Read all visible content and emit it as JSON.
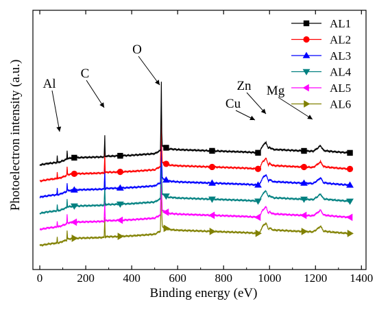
{
  "chart_data": {
    "type": "line",
    "xlabel": "Binding energy (eV)",
    "ylabel": "Photoelectron intensity (a.u.)",
    "xlim": [
      -30,
      1420
    ],
    "x_ticks": [
      0,
      200,
      400,
      600,
      800,
      1000,
      1200,
      1400
    ],
    "y_ticks_labeled": false,
    "legend_position": "top-right",
    "series": [
      {
        "name": "AL1",
        "marker": "square",
        "color": "#000000",
        "offset": 5.0
      },
      {
        "name": "AL2",
        "marker": "circle",
        "color": "#ff0000",
        "offset": 4.0
      },
      {
        "name": "AL3",
        "marker": "triangle-up",
        "color": "#0000ff",
        "offset": 3.0
      },
      {
        "name": "AL4",
        "marker": "triangle-down",
        "color": "#008080",
        "offset": 2.0
      },
      {
        "name": "AL5",
        "marker": "triangle-left",
        "color": "#ff00ff",
        "offset": 1.0
      },
      {
        "name": "AL6",
        "marker": "triangle-right",
        "color": "#808000",
        "offset": 0.0
      }
    ],
    "base_profile": {
      "x": [
        0,
        40,
        74,
        76,
        78,
        90,
        117,
        119,
        121,
        150,
        280,
        283,
        285,
        288,
        320,
        400,
        500,
        525,
        529,
        531,
        533,
        537,
        545,
        560,
        600,
        700,
        800,
        900,
        955,
        970,
        985,
        995,
        1000,
        1010,
        1022,
        1040,
        1100,
        1190,
        1210,
        1222,
        1235,
        1260,
        1300,
        1350
      ],
      "y": [
        0.0,
        0.1,
        0.15,
        0.55,
        0.15,
        0.2,
        0.35,
        0.9,
        0.4,
        0.45,
        0.5,
        1.8,
        0.5,
        0.55,
        0.55,
        0.6,
        0.7,
        0.9,
        4.7,
        2.0,
        1.2,
        1.15,
        1.1,
        1.0,
        0.95,
        0.9,
        0.85,
        0.8,
        0.75,
        1.2,
        1.4,
        1.0,
        1.1,
        1.0,
        0.95,
        0.95,
        0.9,
        0.85,
        1.05,
        1.2,
        0.9,
        0.85,
        0.8,
        0.75
      ]
    },
    "series_peak_overrides": {
      "AL1": {
        "O": 5.2
      },
      "AL2": {
        "O": 4.2
      },
      "AL3": {
        "O": 3.5
      },
      "AL4": {
        "O": 2.2
      }
    },
    "marker_x": [
      150,
      350,
      550,
      750,
      950,
      1150,
      1350
    ],
    "annotations": [
      {
        "text": "Al",
        "x": 75
      },
      {
        "text": "C",
        "x": 285
      },
      {
        "text": "O",
        "x": 531
      },
      {
        "text": "Cu",
        "x": 975
      },
      {
        "text": "Zn",
        "x": 1020
      },
      {
        "text": "Mg",
        "x": 1222
      }
    ]
  }
}
